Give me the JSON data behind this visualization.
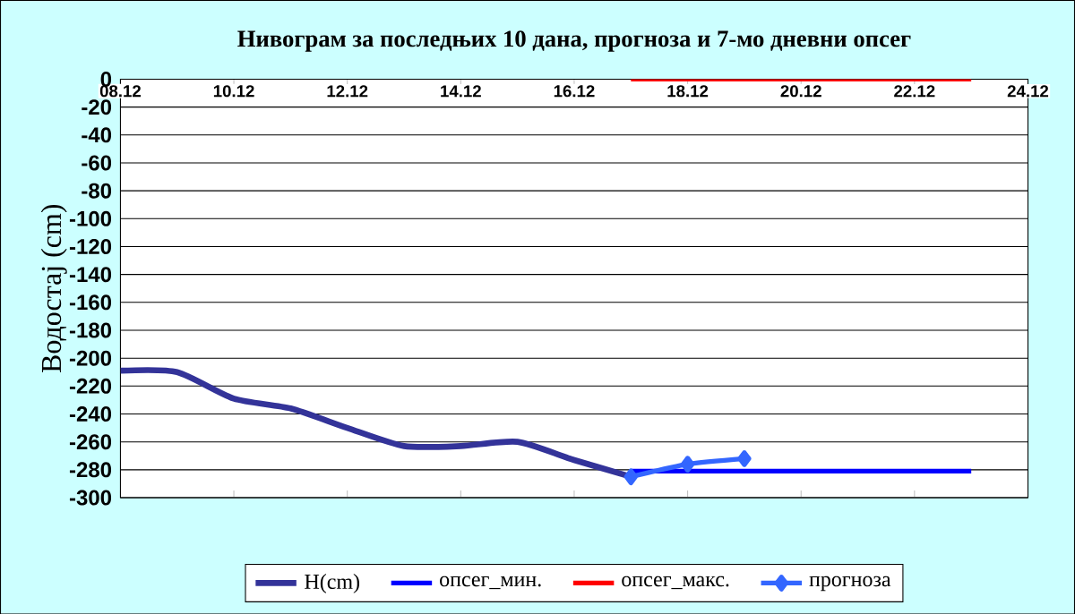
{
  "chart_data": {
    "type": "line",
    "title": "Нивограм за последњих 10 дана, прогноза и 7-мо дневни опсег",
    "ylabel": "Водостај (cm)",
    "xlim": [
      "--12-08",
      "--12-24"
    ],
    "xticks": [
      {
        "value": "--12-08",
        "label": "08.12"
      },
      {
        "value": "--12-10",
        "label": "10.12"
      },
      {
        "value": "--12-12",
        "label": "12.12"
      },
      {
        "value": "--12-14",
        "label": "14.12"
      },
      {
        "value": "--12-16",
        "label": "16.12"
      },
      {
        "value": "--12-18",
        "label": "18.12"
      },
      {
        "value": "--12-20",
        "label": "20.12"
      },
      {
        "value": "--12-22",
        "label": "22.12"
      },
      {
        "value": "--12-24",
        "label": "24.12"
      }
    ],
    "ylim": [
      -300,
      0
    ],
    "yticks": [
      0,
      -20,
      -40,
      -60,
      -80,
      -100,
      -120,
      -140,
      -160,
      -180,
      -200,
      -220,
      -240,
      -260,
      -280,
      -300
    ],
    "grid": "y",
    "legend": "bottom",
    "series": [
      {
        "name": "H(cm)",
        "color": "#333399",
        "x": [
          "--12-08",
          "--12-09",
          "--12-10",
          "--12-11",
          "--12-12",
          "--12-13",
          "--12-14",
          "--12-15",
          "--12-16",
          "--12-17"
        ],
        "values": [
          -209,
          -210,
          -229,
          -236,
          -250,
          -263,
          -263,
          -260,
          -273,
          -285
        ]
      },
      {
        "name": "опсег_мин.",
        "color": "#0000ff",
        "x": [
          "--12-17",
          "--12-23"
        ],
        "values": [
          -281,
          -281
        ]
      },
      {
        "name": "опсег_макс.",
        "color": "#ff0000",
        "x": [
          "--12-17",
          "--12-23"
        ],
        "values": [
          0,
          0
        ]
      },
      {
        "name": "прогноза",
        "color": "#3366ff",
        "marker": "diamond",
        "x": [
          "--12-17",
          "--12-18",
          "--12-19"
        ],
        "values": [
          -285,
          -276,
          -272
        ]
      }
    ]
  }
}
